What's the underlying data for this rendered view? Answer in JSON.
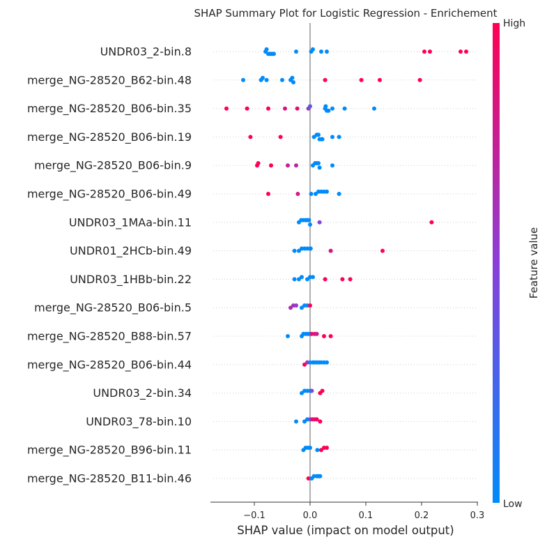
{
  "chart_data": {
    "type": "scatter",
    "title": "SHAP Summary Plot for Logistic Regression - Enrichement",
    "xlabel": "SHAP value (impact on model output)",
    "xlim": [
      -0.17,
      0.3
    ],
    "x_ticks": [
      -0.1,
      0.0,
      0.1,
      0.2,
      0.3
    ],
    "x_tick_labels": [
      "−0.1",
      "0.0",
      "0.1",
      "0.2",
      "0.3"
    ],
    "grid": false,
    "colorbar": {
      "label": "Feature value",
      "high_label": "High",
      "low_label": "Low",
      "low_color": "#008bfb",
      "high_color": "#ff0052"
    },
    "features": [
      {
        "name": "UNDR03_2-bin.8",
        "points": [
          {
            "x": -0.08,
            "v": 0
          },
          {
            "x": -0.078,
            "v": 0
          },
          {
            "x": -0.075,
            "v": 0
          },
          {
            "x": -0.073,
            "v": 0
          },
          {
            "x": -0.07,
            "v": 0
          },
          {
            "x": -0.068,
            "v": 0
          },
          {
            "x": -0.065,
            "v": 0
          },
          {
            "x": -0.025,
            "v": 0
          },
          {
            "x": 0.002,
            "v": 0
          },
          {
            "x": 0.005,
            "v": 0
          },
          {
            "x": 0.02,
            "v": 0
          },
          {
            "x": 0.03,
            "v": 0
          },
          {
            "x": 0.205,
            "v": 1
          },
          {
            "x": 0.215,
            "v": 1
          },
          {
            "x": 0.27,
            "v": 1
          },
          {
            "x": 0.28,
            "v": 1
          }
        ]
      },
      {
        "name": "merge_NG-28520_B62-bin.48",
        "points": [
          {
            "x": -0.12,
            "v": 0
          },
          {
            "x": -0.088,
            "v": 0
          },
          {
            "x": -0.085,
            "v": 0
          },
          {
            "x": -0.078,
            "v": 0
          },
          {
            "x": -0.05,
            "v": 0
          },
          {
            "x": -0.035,
            "v": 0
          },
          {
            "x": -0.032,
            "v": 0
          },
          {
            "x": -0.03,
            "v": 0
          },
          {
            "x": 0.027,
            "v": 1
          },
          {
            "x": 0.092,
            "v": 1
          },
          {
            "x": 0.125,
            "v": 1
          },
          {
            "x": 0.197,
            "v": 1
          }
        ]
      },
      {
        "name": "merge_NG-28520_B06-bin.35",
        "points": [
          {
            "x": -0.15,
            "v": 1
          },
          {
            "x": -0.113,
            "v": 1
          },
          {
            "x": -0.075,
            "v": 1
          },
          {
            "x": -0.045,
            "v": 0.82
          },
          {
            "x": -0.023,
            "v": 0.88
          },
          {
            "x": -0.003,
            "v": 0.55
          },
          {
            "x": 0.0,
            "v": 0.3
          },
          {
            "x": 0.027,
            "v": 0
          },
          {
            "x": 0.028,
            "v": 0
          },
          {
            "x": 0.03,
            "v": 0
          },
          {
            "x": 0.033,
            "v": 0
          },
          {
            "x": 0.04,
            "v": 0
          },
          {
            "x": 0.062,
            "v": 0
          },
          {
            "x": 0.115,
            "v": 0
          }
        ]
      },
      {
        "name": "merge_NG-28520_B06-bin.19",
        "points": [
          {
            "x": -0.107,
            "v": 1
          },
          {
            "x": -0.053,
            "v": 1
          },
          {
            "x": 0.007,
            "v": 0
          },
          {
            "x": 0.012,
            "v": 0
          },
          {
            "x": 0.015,
            "v": 0
          },
          {
            "x": 0.017,
            "v": 0
          },
          {
            "x": 0.02,
            "v": 0
          },
          {
            "x": 0.022,
            "v": 0
          },
          {
            "x": 0.04,
            "v": 0
          },
          {
            "x": 0.052,
            "v": 0
          }
        ]
      },
      {
        "name": "merge_NG-28520_B06-bin.9",
        "points": [
          {
            "x": -0.095,
            "v": 1
          },
          {
            "x": -0.093,
            "v": 1
          },
          {
            "x": -0.07,
            "v": 1
          },
          {
            "x": -0.04,
            "v": 0.75
          },
          {
            "x": -0.025,
            "v": 0.7
          },
          {
            "x": 0.005,
            "v": 0
          },
          {
            "x": 0.009,
            "v": 0
          },
          {
            "x": 0.012,
            "v": 0
          },
          {
            "x": 0.015,
            "v": 0
          },
          {
            "x": 0.017,
            "v": 0
          },
          {
            "x": 0.04,
            "v": 0
          }
        ]
      },
      {
        "name": "merge_NG-28520_B06-bin.49",
        "points": [
          {
            "x": -0.075,
            "v": 1
          },
          {
            "x": -0.022,
            "v": 0.8
          },
          {
            "x": 0.002,
            "v": 0
          },
          {
            "x": 0.01,
            "v": 0
          },
          {
            "x": 0.015,
            "v": 0
          },
          {
            "x": 0.02,
            "v": 0
          },
          {
            "x": 0.025,
            "v": 0
          },
          {
            "x": 0.03,
            "v": 0
          },
          {
            "x": 0.052,
            "v": 0
          }
        ]
      },
      {
        "name": "UNDR03_1MAa-bin.11",
        "points": [
          {
            "x": -0.02,
            "v": 0
          },
          {
            "x": -0.016,
            "v": 0
          },
          {
            "x": -0.012,
            "v": 0
          },
          {
            "x": -0.008,
            "v": 0
          },
          {
            "x": -0.005,
            "v": 0
          },
          {
            "x": -0.002,
            "v": 0
          },
          {
            "x": 0.0,
            "v": 0
          },
          {
            "x": 0.017,
            "v": 0.45
          },
          {
            "x": 0.218,
            "v": 1
          }
        ]
      },
      {
        "name": "UNDR01_2HCb-bin.49",
        "points": [
          {
            "x": -0.028,
            "v": 0
          },
          {
            "x": -0.02,
            "v": 0
          },
          {
            "x": -0.015,
            "v": 0
          },
          {
            "x": -0.01,
            "v": 0
          },
          {
            "x": -0.005,
            "v": 0
          },
          {
            "x": 0.0,
            "v": 0
          },
          {
            "x": 0.001,
            "v": 0
          },
          {
            "x": 0.037,
            "v": 0.85
          },
          {
            "x": 0.13,
            "v": 1
          }
        ]
      },
      {
        "name": "UNDR03_1HBb-bin.22",
        "points": [
          {
            "x": -0.028,
            "v": 0
          },
          {
            "x": -0.02,
            "v": 0
          },
          {
            "x": -0.015,
            "v": 0
          },
          {
            "x": -0.005,
            "v": 0
          },
          {
            "x": 0.0,
            "v": 0
          },
          {
            "x": 0.005,
            "v": 0
          },
          {
            "x": 0.027,
            "v": 1
          },
          {
            "x": 0.058,
            "v": 1
          },
          {
            "x": 0.072,
            "v": 1
          }
        ]
      },
      {
        "name": "merge_NG-28520_B06-bin.5",
        "points": [
          {
            "x": -0.035,
            "v": 0.65
          },
          {
            "x": -0.03,
            "v": 0.6
          },
          {
            "x": -0.025,
            "v": 0.55
          },
          {
            "x": -0.015,
            "v": 0
          },
          {
            "x": -0.01,
            "v": 0
          },
          {
            "x": -0.005,
            "v": 0
          },
          {
            "x": 0.0,
            "v": 1
          }
        ]
      },
      {
        "name": "merge_NG-28520_B88-bin.57",
        "points": [
          {
            "x": -0.04,
            "v": 0
          },
          {
            "x": -0.015,
            "v": 0
          },
          {
            "x": -0.012,
            "v": 0
          },
          {
            "x": -0.008,
            "v": 0
          },
          {
            "x": -0.004,
            "v": 0
          },
          {
            "x": 0.0,
            "v": 0
          },
          {
            "x": 0.003,
            "v": 0.9
          },
          {
            "x": 0.008,
            "v": 0.85
          },
          {
            "x": 0.012,
            "v": 0.8
          },
          {
            "x": 0.025,
            "v": 1
          },
          {
            "x": 0.037,
            "v": 1
          }
        ]
      },
      {
        "name": "merge_NG-28520_B06-bin.44",
        "points": [
          {
            "x": -0.01,
            "v": 1
          },
          {
            "x": -0.005,
            "v": 0.6
          },
          {
            "x": 0.0,
            "v": 0
          },
          {
            "x": 0.005,
            "v": 0
          },
          {
            "x": 0.008,
            "v": 0
          },
          {
            "x": 0.012,
            "v": 0
          },
          {
            "x": 0.016,
            "v": 0
          },
          {
            "x": 0.02,
            "v": 0
          },
          {
            "x": 0.025,
            "v": 0
          },
          {
            "x": 0.03,
            "v": 0
          }
        ]
      },
      {
        "name": "UNDR03_2-bin.34",
        "points": [
          {
            "x": -0.015,
            "v": 0
          },
          {
            "x": -0.01,
            "v": 0
          },
          {
            "x": -0.005,
            "v": 0
          },
          {
            "x": 0.0,
            "v": 0
          },
          {
            "x": 0.003,
            "v": 0.4
          },
          {
            "x": 0.018,
            "v": 1
          },
          {
            "x": 0.022,
            "v": 1
          }
        ]
      },
      {
        "name": "UNDR03_78-bin.10",
        "points": [
          {
            "x": -0.025,
            "v": 0
          },
          {
            "x": -0.01,
            "v": 0
          },
          {
            "x": -0.005,
            "v": 0
          },
          {
            "x": 0.0,
            "v": 0.4
          },
          {
            "x": 0.004,
            "v": 0.9
          },
          {
            "x": 0.008,
            "v": 0.9
          },
          {
            "x": 0.012,
            "v": 0.95
          },
          {
            "x": 0.018,
            "v": 1
          }
        ]
      },
      {
        "name": "merge_NG-28520_B96-bin.11",
        "points": [
          {
            "x": -0.012,
            "v": 0
          },
          {
            "x": -0.008,
            "v": 0
          },
          {
            "x": -0.004,
            "v": 0
          },
          {
            "x": 0.0,
            "v": 0
          },
          {
            "x": 0.013,
            "v": 0
          },
          {
            "x": 0.02,
            "v": 1
          },
          {
            "x": 0.025,
            "v": 1
          },
          {
            "x": 0.03,
            "v": 1
          }
        ]
      },
      {
        "name": "merge_NG-28520_B11-bin.46",
        "points": [
          {
            "x": -0.003,
            "v": 1
          },
          {
            "x": 0.003,
            "v": 0
          },
          {
            "x": 0.007,
            "v": 0
          },
          {
            "x": 0.012,
            "v": 0
          },
          {
            "x": 0.015,
            "v": 0
          },
          {
            "x": 0.018,
            "v": 0
          }
        ]
      }
    ]
  }
}
